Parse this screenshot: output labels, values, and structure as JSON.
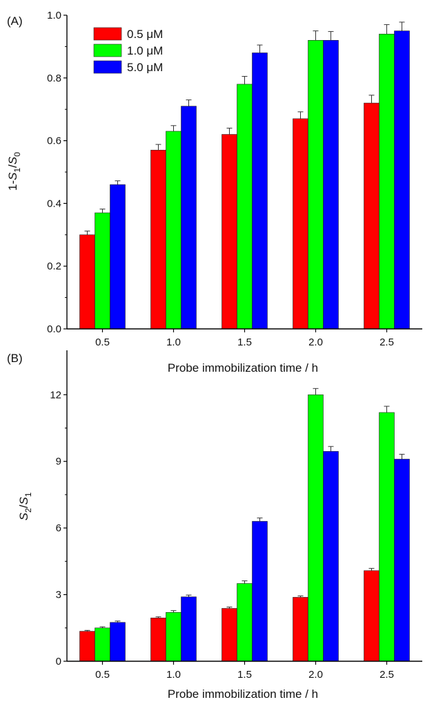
{
  "chart_data": [
    {
      "type": "bar",
      "panel_label": "(A)",
      "categories": [
        "0.5",
        "1.0",
        "1.5",
        "2.0",
        "2.5"
      ],
      "xlabel": "Probe immobilization time / h",
      "ylabel": "1-S1/S0",
      "ylabel_parts": {
        "a": "1-",
        "b": "S",
        "b_sub": "1",
        "c": "/",
        "d": "S",
        "d_sub": "0"
      },
      "ylim": [
        0,
        1.0
      ],
      "yticks": [
        "0.0",
        "0.2",
        "0.4",
        "0.6",
        "0.8",
        "1.0"
      ],
      "legend": "top-left",
      "series": [
        {
          "name": "0.5 μM",
          "color": "#ff0000",
          "values": [
            0.3,
            0.57,
            0.62,
            0.67,
            0.72
          ],
          "errors": [
            0.012,
            0.018,
            0.02,
            0.022,
            0.025
          ]
        },
        {
          "name": "1.0 μM",
          "color": "#00ff00",
          "values": [
            0.37,
            0.63,
            0.78,
            0.92,
            0.94
          ],
          "errors": [
            0.012,
            0.018,
            0.025,
            0.03,
            0.03
          ]
        },
        {
          "name": "5.0 μM",
          "color": "#0000ff",
          "values": [
            0.46,
            0.71,
            0.88,
            0.92,
            0.95
          ],
          "errors": [
            0.012,
            0.02,
            0.025,
            0.028,
            0.028
          ]
        }
      ]
    },
    {
      "type": "bar",
      "panel_label": "(B)",
      "categories": [
        "0.5",
        "1.0",
        "1.5",
        "2.0",
        "2.5"
      ],
      "xlabel": "Probe immobilization time / h",
      "ylabel": "S2/S1",
      "ylabel_parts": {
        "a": "",
        "b": "S",
        "b_sub": "2",
        "c": "/",
        "d": "S",
        "d_sub": "1"
      },
      "ylim": [
        0,
        14
      ],
      "yticks": [
        "0",
        "3",
        "6",
        "9",
        "12"
      ],
      "series": [
        {
          "name": "0.5 μM",
          "color": "#ff0000",
          "values": [
            1.35,
            1.95,
            2.38,
            2.88,
            4.08
          ],
          "errors": [
            0.04,
            0.05,
            0.06,
            0.06,
            0.1
          ]
        },
        {
          "name": "1.0 μM",
          "color": "#00ff00",
          "values": [
            1.5,
            2.2,
            3.5,
            12.0,
            11.2
          ],
          "errors": [
            0.05,
            0.08,
            0.12,
            0.28,
            0.28
          ]
        },
        {
          "name": "5.0 μM",
          "color": "#0000ff",
          "values": [
            1.75,
            2.9,
            6.3,
            9.45,
            9.1
          ],
          "errors": [
            0.06,
            0.08,
            0.15,
            0.22,
            0.22
          ]
        }
      ]
    }
  ]
}
